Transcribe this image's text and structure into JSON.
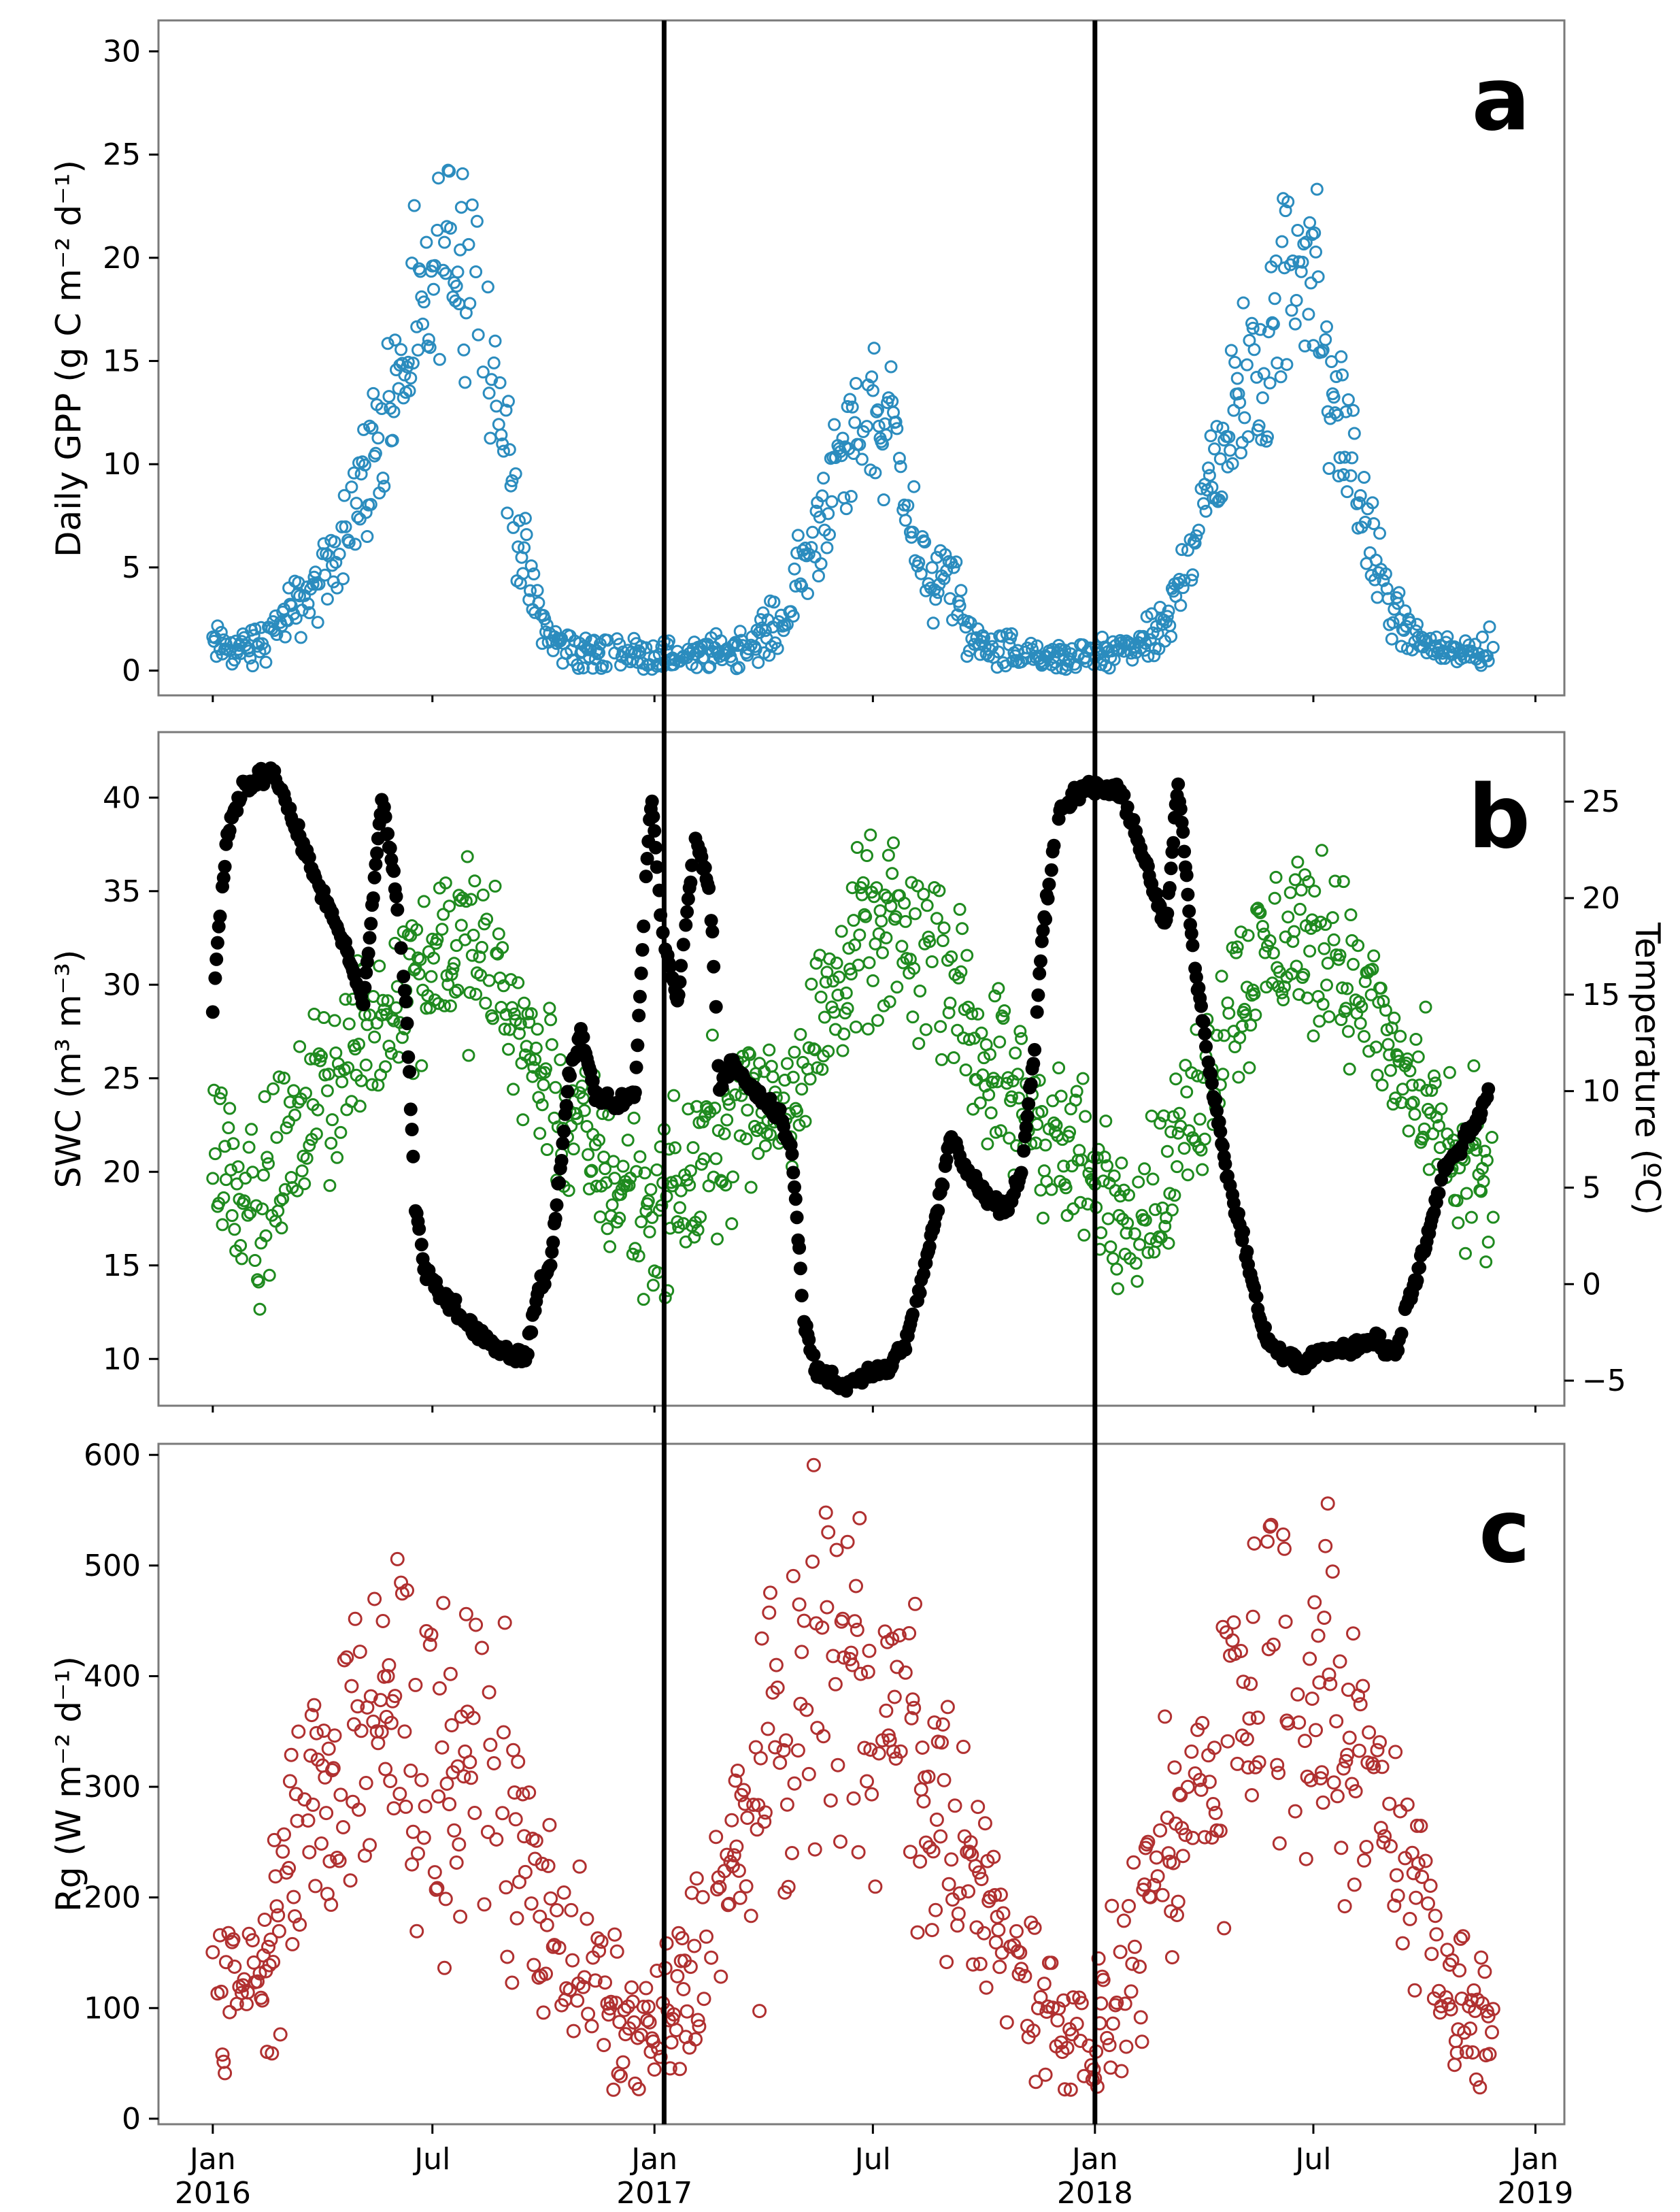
{
  "chart_data": [
    {
      "panel": "a",
      "type": "scatter",
      "ylabel": "Daily GPP (g C m⁻² d⁻¹)",
      "ylim": [
        -1.2,
        31.5
      ],
      "yticks": [
        "0",
        "5",
        "10",
        "15",
        "20",
        "25",
        "30"
      ],
      "series": [
        {
          "name": "Daily GPP",
          "color": "#2b8cbe",
          "marker": "open-circle",
          "seasonal_shape": [
            [
              0,
              1.2
            ],
            [
              30,
              1.0
            ],
            [
              60,
              2.5
            ],
            [
              90,
              4.0
            ],
            [
              110,
              7.0
            ],
            [
              130,
              10.0
            ],
            [
              150,
              13.0
            ],
            [
              170,
              16.5
            ],
            [
              190,
              20.0
            ],
            [
              205,
              21.0
            ],
            [
              220,
              18.5
            ],
            [
              235,
              14.0
            ],
            [
              250,
              8.0
            ],
            [
              265,
              3.5
            ],
            [
              280,
              1.5
            ],
            [
              300,
              0.9
            ],
            [
              330,
              0.8
            ],
            [
              366,
              0.7
            ],
            [
              390,
              0.6
            ],
            [
              420,
              0.9
            ],
            [
              450,
              1.5
            ],
            [
              475,
              2.5
            ],
            [
              500,
              7.0
            ],
            [
              520,
              10.0
            ],
            [
              545,
              12.5
            ],
            [
              565,
              12.0
            ],
            [
              585,
              5.0
            ],
            [
              600,
              4.0
            ],
            [
              615,
              4.5
            ],
            [
              625,
              1.5
            ],
            [
              650,
              1.0
            ],
            [
              680,
              0.6
            ],
            [
              700,
              0.4
            ],
            [
              731,
              0.6
            ],
            [
              750,
              0.9
            ],
            [
              770,
              1.2
            ],
            [
              790,
              2.0
            ],
            [
              810,
              6.0
            ],
            [
              830,
              10.0
            ],
            [
              850,
              13.0
            ],
            [
              870,
              16.0
            ],
            [
              890,
              19.0
            ],
            [
              910,
              20.5
            ],
            [
              925,
              13.5
            ],
            [
              945,
              10.0
            ],
            [
              960,
              6.0
            ],
            [
              975,
              3.0
            ],
            [
              990,
              1.8
            ],
            [
              1010,
              1.2
            ],
            [
              1030,
              0.8
            ],
            [
              1061,
              1.0
            ]
          ]
        }
      ]
    },
    {
      "panel": "b",
      "type": "scatter",
      "ylabel": "SWC (m³ m⁻³)",
      "ylabel_right": "Temperature (ºC)",
      "ylim": [
        7.5,
        43.5
      ],
      "ylim_right": [
        -6.3,
        28.6
      ],
      "yticks": [
        "10",
        "15",
        "20",
        "25",
        "30",
        "35",
        "40"
      ],
      "yticks_right": [
        "−5",
        "0",
        "5",
        "10",
        "15",
        "20",
        "25"
      ],
      "series": [
        {
          "name": "SWC",
          "axis": "left",
          "color": "#000000",
          "marker": "filled-circle",
          "path": [
            [
              0,
              28.2
            ],
            [
              5,
              33
            ],
            [
              12,
              38
            ],
            [
              25,
              40.5
            ],
            [
              50,
              41.5
            ],
            [
              65,
              39
            ],
            [
              90,
              35
            ],
            [
              110,
              32
            ],
            [
              125,
              29
            ],
            [
              140,
              40
            ],
            [
              150,
              36
            ],
            [
              160,
              29
            ],
            [
              168,
              18
            ],
            [
              175,
              15
            ],
            [
              190,
              13.5
            ],
            [
              210,
              12
            ],
            [
              230,
              10.8
            ],
            [
              250,
              10.2
            ],
            [
              260,
              10.2
            ],
            [
              270,
              13.8
            ],
            [
              280,
              15
            ],
            [
              295,
              25
            ],
            [
              305,
              27.5
            ],
            [
              318,
              24
            ],
            [
              335,
              23.5
            ],
            [
              350,
              24.2
            ],
            [
              360,
              37
            ],
            [
              364,
              40
            ],
            [
              372,
              33
            ],
            [
              385,
              29
            ],
            [
              400,
              38
            ],
            [
              412,
              35
            ],
            [
              420,
              24.5
            ],
            [
              430,
              26
            ],
            [
              445,
              24.5
            ],
            [
              470,
              23
            ],
            [
              480,
              21
            ],
            [
              490,
              12
            ],
            [
              500,
              9.5
            ],
            [
              520,
              8.5
            ],
            [
              540,
              9.2
            ],
            [
              560,
              9.5
            ],
            [
              575,
              11
            ],
            [
              585,
              13.5
            ],
            [
              600,
              17.8
            ],
            [
              612,
              22
            ],
            [
              625,
              20
            ],
            [
              645,
              18.5
            ],
            [
              658,
              18
            ],
            [
              670,
              20
            ],
            [
              680,
              26
            ],
            [
              688,
              33
            ],
            [
              700,
              39
            ],
            [
              720,
              40.5
            ],
            [
              740,
              40.5
            ],
            [
              755,
              40
            ],
            [
              770,
              37
            ],
            [
              790,
              33
            ],
            [
              800,
              41
            ],
            [
              812,
              32
            ],
            [
              825,
              26
            ],
            [
              840,
              20
            ],
            [
              855,
              16
            ],
            [
              870,
              11.5
            ],
            [
              885,
              10.2
            ],
            [
              905,
              9.8
            ],
            [
              920,
              10.5
            ],
            [
              945,
              10.5
            ],
            [
              960,
              11.2
            ],
            [
              980,
              10.2
            ],
            [
              990,
              13
            ],
            [
              1000,
              15
            ],
            [
              1020,
              20
            ],
            [
              1045,
              22.5
            ],
            [
              1058,
              24.5
            ]
          ]
        },
        {
          "name": "Temperature",
          "axis": "right",
          "color": "#1f8a1f",
          "marker": "open-circle",
          "seasonal_shape": [
            [
              0,
              7.0
            ],
            [
              40,
              4.0
            ],
            [
              80,
              9.0
            ],
            [
              120,
              12.0
            ],
            [
              160,
              16.0
            ],
            [
              190,
              18.0
            ],
            [
              210,
              17.5
            ],
            [
              240,
              16.0
            ],
            [
              270,
              11.0
            ],
            [
              300,
              8.0
            ],
            [
              330,
              5.5
            ],
            [
              365,
              4.0
            ],
            [
              395,
              5.0
            ],
            [
              420,
              8.5
            ],
            [
              450,
              9.5
            ],
            [
              480,
              10.5
            ],
            [
              510,
              14.5
            ],
            [
              540,
              18.0
            ],
            [
              570,
              18.0
            ],
            [
              600,
              17.0
            ],
            [
              630,
              13.0
            ],
            [
              660,
              10.0
            ],
            [
              690,
              8.0
            ],
            [
              730,
              5.0
            ],
            [
              760,
              4.0
            ],
            [
              790,
              5.0
            ],
            [
              810,
              8.5
            ],
            [
              830,
              12.0
            ],
            [
              860,
              16.0
            ],
            [
              900,
              18.5
            ],
            [
              930,
              17.0
            ],
            [
              960,
              14.0
            ],
            [
              990,
              10.0
            ],
            [
              1020,
              7.0
            ],
            [
              1040,
              6.0
            ],
            [
              1061,
              4.5
            ]
          ]
        }
      ]
    },
    {
      "panel": "c",
      "type": "scatter",
      "ylabel": "Rg (W m⁻² d⁻¹)",
      "ylim": [
        -5,
        610
      ],
      "yticks": [
        "0",
        "100",
        "200",
        "300",
        "400",
        "500",
        "600"
      ],
      "xticks": [
        "Jan\n2016",
        "Jul",
        "Jan\n2017",
        "Jul",
        "Jan\n2018",
        "Jul",
        "Jan\n2019"
      ],
      "series": [
        {
          "name": "Rg",
          "color": "#b03030",
          "marker": "open-circle",
          "seasonal_shape": [
            [
              0,
              90
            ],
            [
              30,
              120
            ],
            [
              60,
              210
            ],
            [
              90,
              300
            ],
            [
              120,
              350
            ],
            [
              150,
              360
            ],
            [
              180,
              330
            ],
            [
              210,
              320
            ],
            [
              240,
              280
            ],
            [
              270,
              200
            ],
            [
              300,
              140
            ],
            [
              330,
              90
            ],
            [
              366,
              75
            ],
            [
              395,
              120
            ],
            [
              430,
              230
            ],
            [
              470,
              330
            ],
            [
              510,
              410
            ],
            [
              540,
              400
            ],
            [
              570,
              340
            ],
            [
              600,
              280
            ],
            [
              630,
              220
            ],
            [
              660,
              150
            ],
            [
              700,
              90
            ],
            [
              731,
              70
            ],
            [
              760,
              130
            ],
            [
              790,
              230
            ],
            [
              820,
              300
            ],
            [
              850,
              390
            ],
            [
              880,
              420
            ],
            [
              910,
              400
            ],
            [
              940,
              340
            ],
            [
              970,
              280
            ],
            [
              1000,
              200
            ],
            [
              1030,
              110
            ],
            [
              1061,
              70
            ]
          ]
        }
      ]
    }
  ],
  "x_axis": {
    "xlim_days": [
      -45,
      1120
    ],
    "tick_days": [
      0,
      182,
      366,
      547,
      731,
      912,
      1096
    ],
    "tick_top_labels": [
      "Jan",
      "Jul",
      "Jan",
      "Jul",
      "Jan",
      "Jul",
      "Jan"
    ],
    "tick_bottom_labels": [
      "2016",
      "",
      "2017",
      "",
      "2018",
      "",
      "2019"
    ],
    "vertical_lines_days": [
      374,
      731
    ]
  },
  "panel_letters": [
    "a",
    "b",
    "c"
  ]
}
